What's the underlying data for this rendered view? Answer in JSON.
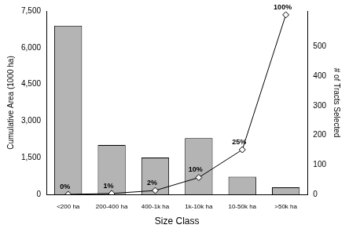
{
  "chart_data": {
    "type": "bar",
    "categories": [
      "<200 ha",
      "200-400 ha",
      "400-1k ha",
      "1k-10k ha",
      "10-50k ha",
      ">50k ha"
    ],
    "x_label": "Size Class",
    "y_label": "Cumulative Area (1000 ha)",
    "y2_label": "# of Tracts Selected",
    "series": [
      {
        "type": "bar",
        "color": "#b4b4b4",
        "values": [
          6900,
          2020,
          1510,
          2300,
          725,
          285
        ]
      },
      {
        "type": "line",
        "axis": "y2",
        "color": "#000000",
        "marker": "diamond",
        "line_style": "solid",
        "values": [
          0,
          3,
          13,
          57,
          151,
          607
        ]
      }
    ],
    "annotations": [
      {
        "category": "<200 ha",
        "text": "0%"
      },
      {
        "category": "200-400 ha",
        "text": "1%"
      },
      {
        "category": "400-1k ha",
        "text": "2%"
      },
      {
        "category": "1k-10k ha",
        "text": "10%"
      },
      {
        "category": "10-50k ha",
        "text": "25%"
      },
      {
        "category": ">50k ha",
        "text": "100%"
      }
    ],
    "ylim": [
      0,
      7500
    ],
    "yticks": [
      0,
      {
        "value": 1500,
        "label": "1,500"
      },
      {
        "value": 3000,
        "label": "3,000"
      },
      {
        "value": 4500,
        "label": "4,500"
      },
      {
        "value": 6000,
        "label": "6,000"
      },
      {
        "value": 7500,
        "label": "7,500"
      }
    ],
    "y2lim": [
      0,
      620
    ],
    "y2ticks": [
      0,
      100,
      200,
      300,
      400,
      500
    ],
    "grid": false
  }
}
